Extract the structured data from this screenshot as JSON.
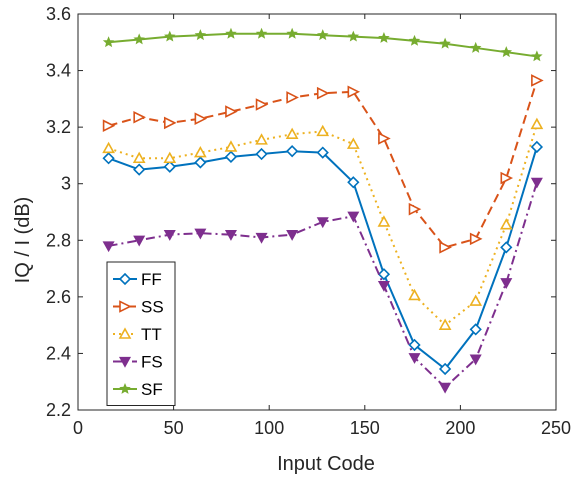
{
  "chart_data": {
    "type": "line",
    "xlabel": "Input Code",
    "ylabel": "IQ / I (dB)",
    "xlim": [
      0,
      250
    ],
    "ylim": [
      2.2,
      3.6
    ],
    "xticks": [
      0,
      50,
      100,
      150,
      200,
      250
    ],
    "yticks": [
      2.2,
      2.4,
      2.6,
      2.8,
      3.0,
      3.2,
      3.4,
      3.6
    ],
    "ytick_labels": [
      "2.2",
      "2.4",
      "2.6",
      "2.8",
      "3",
      "3.2",
      "3.4",
      "3.6"
    ],
    "grid": false,
    "legend_position": "bottom-left",
    "x": [
      16,
      32,
      48,
      64,
      80,
      96,
      112,
      128,
      144,
      160,
      176,
      192,
      208,
      224,
      240
    ],
    "series": [
      {
        "name": "FF",
        "color": "#0072BD",
        "dash": "solid",
        "marker": "diamond",
        "values": [
          3.09,
          3.05,
          3.06,
          3.075,
          3.095,
          3.105,
          3.115,
          3.11,
          3.005,
          2.68,
          2.43,
          2.345,
          2.485,
          2.775,
          3.13
        ]
      },
      {
        "name": "SS",
        "color": "#D95319",
        "dash": "dashed",
        "marker": "triangle-right",
        "values": [
          3.205,
          3.235,
          3.215,
          3.23,
          3.255,
          3.28,
          3.305,
          3.32,
          3.325,
          3.16,
          2.91,
          2.775,
          2.805,
          3.02,
          3.365
        ]
      },
      {
        "name": "TT",
        "color": "#EDB120",
        "dash": "dotted",
        "marker": "triangle-up",
        "values": [
          3.125,
          3.09,
          3.09,
          3.11,
          3.13,
          3.155,
          3.175,
          3.185,
          3.14,
          2.865,
          2.605,
          2.5,
          2.585,
          2.855,
          3.21
        ]
      },
      {
        "name": "FS",
        "color": "#7E2F8E",
        "dash": "dashdot",
        "marker": "triangle-down",
        "values": [
          2.78,
          2.8,
          2.82,
          2.825,
          2.82,
          2.81,
          2.82,
          2.865,
          2.885,
          2.64,
          2.385,
          2.28,
          2.38,
          2.65,
          3.005
        ]
      },
      {
        "name": "SF",
        "color": "#77AC30",
        "dash": "solid",
        "marker": "star",
        "values": [
          3.5,
          3.51,
          3.52,
          3.525,
          3.53,
          3.53,
          3.53,
          3.525,
          3.52,
          3.515,
          3.505,
          3.495,
          3.48,
          3.465,
          3.45
        ]
      }
    ]
  }
}
